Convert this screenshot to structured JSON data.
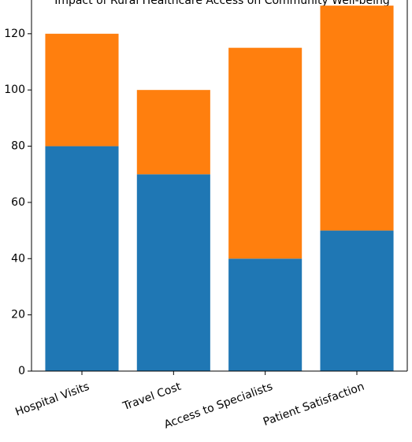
{
  "chart_data": {
    "type": "bar",
    "stacked": true,
    "title": "Impact of Rural Healthcare Access on Community Well-being",
    "categories": [
      "Hospital Visits",
      "Travel Cost",
      "Access to Specialists",
      "Patient Satisfaction"
    ],
    "series": [
      {
        "values": [
          80,
          70,
          40,
          50
        ],
        "color": "#1f77b4"
      },
      {
        "values": [
          40,
          30,
          75,
          80
        ],
        "color": "#ff7f0e"
      }
    ],
    "ylim": [
      0,
      132
    ],
    "yticks": [
      0,
      20,
      40,
      60,
      80,
      100,
      120
    ],
    "xlabel": "",
    "ylabel": "",
    "grid": false,
    "legend": "none"
  }
}
